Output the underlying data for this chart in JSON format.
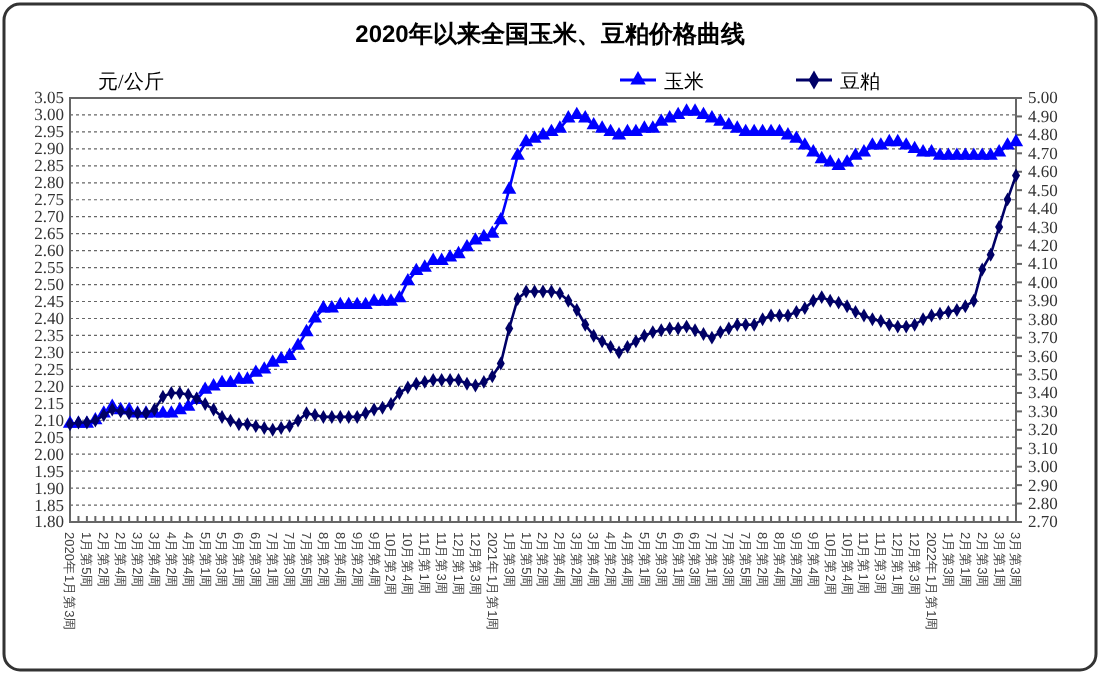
{
  "chart_data": {
    "type": "line",
    "title": "2020年以来全国玉米、豆粕价格曲线",
    "ylabel": "元/公斤",
    "categories": [
      "2020年1月第3周",
      null,
      "1月第5周",
      null,
      "2月第2周",
      null,
      "2月第4周",
      null,
      "3月第2周",
      null,
      "3月第4周",
      null,
      "4月第2周",
      null,
      "4月第4周",
      null,
      "5月第1周",
      null,
      "5月第3周",
      null,
      "6月第1周",
      null,
      "6月第3周",
      null,
      "7月第1周",
      null,
      "7月第3周",
      null,
      "7月第5周",
      null,
      "8月第2周",
      null,
      "8月第4周",
      null,
      "9月第2周",
      null,
      "9月第4周",
      null,
      "10月第2周",
      null,
      "10月第4周",
      null,
      "11月第1周",
      null,
      "11月第3周",
      null,
      "12月第1周",
      null,
      "12月第3周",
      null,
      "2021年1月第1周",
      null,
      "1月第3周",
      null,
      "1月第5周",
      null,
      "2月第2周",
      null,
      "2月第4周",
      null,
      "3月第2周",
      null,
      "3月第4周",
      null,
      "4月第2周",
      null,
      "4月第4周",
      null,
      "5月第1周",
      null,
      "5月第3周",
      null,
      "6月第1周",
      null,
      "6月第3周",
      null,
      "7月第1周",
      null,
      "7月第3周",
      null,
      "7月第5周",
      null,
      "8月第2周",
      null,
      "8月第4周",
      null,
      "9月第2周",
      null,
      "9月第4周",
      null,
      "10月第2周",
      null,
      "10月第4周",
      null,
      "11月第1周",
      null,
      "11月第3周",
      null,
      "12月第1周",
      null,
      "12月第3周",
      null,
      "2022年1月第1周",
      null,
      "1月第3周",
      null,
      "2月第1周",
      null,
      "2月第3周",
      null,
      "3月第1周",
      null,
      "3月第3周"
    ],
    "series": [
      {
        "name": "玉米",
        "color": "#0000ff",
        "marker": "triangle",
        "values": [
          2.09,
          2.09,
          2.09,
          2.1,
          2.12,
          2.14,
          2.13,
          2.13,
          2.12,
          2.12,
          2.12,
          2.12,
          2.12,
          2.13,
          2.14,
          2.16,
          2.19,
          2.2,
          2.21,
          2.21,
          2.22,
          2.22,
          2.24,
          2.25,
          2.27,
          2.28,
          2.29,
          2.32,
          2.36,
          2.4,
          2.43,
          2.43,
          2.44,
          2.44,
          2.44,
          2.44,
          2.45,
          2.45,
          2.45,
          2.46,
          2.51,
          2.54,
          2.55,
          2.57,
          2.57,
          2.58,
          2.59,
          2.61,
          2.63,
          2.64,
          2.65,
          2.69,
          2.78,
          2.88,
          2.92,
          2.93,
          2.94,
          2.95,
          2.96,
          2.99,
          3.0,
          2.99,
          2.97,
          2.96,
          2.95,
          2.94,
          2.95,
          2.95,
          2.96,
          2.96,
          2.98,
          2.99,
          3.0,
          3.01,
          3.01,
          3.0,
          2.99,
          2.98,
          2.97,
          2.96,
          2.95,
          2.95,
          2.95,
          2.95,
          2.95,
          2.94,
          2.93,
          2.91,
          2.89,
          2.87,
          2.86,
          2.85,
          2.86,
          2.88,
          2.89,
          2.91,
          2.91,
          2.92,
          2.92,
          2.91,
          2.9,
          2.89,
          2.89,
          2.88,
          2.88,
          2.88,
          2.88,
          2.88,
          2.88,
          2.88,
          2.89,
          2.91,
          2.92
        ]
      },
      {
        "name": "豆粕",
        "color": "#000066",
        "marker": "diamond",
        "axis": "y2",
        "values": [
          3.23,
          3.24,
          3.24,
          3.25,
          3.28,
          3.31,
          3.3,
          3.29,
          3.29,
          3.29,
          3.31,
          3.38,
          3.4,
          3.4,
          3.39,
          3.37,
          3.34,
          3.31,
          3.27,
          3.25,
          3.23,
          3.23,
          3.22,
          3.21,
          3.2,
          3.21,
          3.22,
          3.25,
          3.29,
          3.28,
          3.27,
          3.27,
          3.27,
          3.27,
          3.27,
          3.29,
          3.31,
          3.32,
          3.34,
          3.4,
          3.43,
          3.45,
          3.46,
          3.47,
          3.47,
          3.47,
          3.47,
          3.45,
          3.44,
          3.46,
          3.49,
          3.56,
          3.75,
          3.91,
          3.95,
          3.95,
          3.95,
          3.95,
          3.94,
          3.9,
          3.85,
          3.77,
          3.71,
          3.68,
          3.65,
          3.62,
          3.65,
          3.68,
          3.71,
          3.73,
          3.74,
          3.75,
          3.75,
          3.76,
          3.74,
          3.72,
          3.7,
          3.73,
          3.75,
          3.77,
          3.77,
          3.77,
          3.8,
          3.82,
          3.82,
          3.82,
          3.84,
          3.86,
          3.9,
          3.92,
          3.9,
          3.89,
          3.87,
          3.84,
          3.82,
          3.8,
          3.79,
          3.77,
          3.76,
          3.76,
          3.77,
          3.8,
          3.82,
          3.83,
          3.84,
          3.85,
          3.87,
          3.9,
          4.07,
          4.15,
          4.3,
          4.45,
          4.58
        ]
      }
    ],
    "ylim": [
      1.8,
      3.05
    ],
    "yticks": [
      {
        "value": 1.8,
        "label": "1.80"
      },
      {
        "value": 1.85,
        "label": "1.85"
      },
      {
        "value": 1.9,
        "label": "1.90"
      },
      {
        "value": 1.95,
        "label": "1.95"
      },
      {
        "value": 2,
        "label": "2.00"
      },
      {
        "value": 2.05,
        "label": "2.05"
      },
      {
        "value": 2.1,
        "label": "2.10"
      },
      {
        "value": 2.15,
        "label": "2.15"
      },
      {
        "value": 2.2,
        "label": "2.20"
      },
      {
        "value": 2.25,
        "label": "2.25"
      },
      {
        "value": 2.3,
        "label": "2.30"
      },
      {
        "value": 2.35,
        "label": "2.35"
      },
      {
        "value": 2.4,
        "label": "2.40"
      },
      {
        "value": 2.45,
        "label": "2.45"
      },
      {
        "value": 2.5,
        "label": "2.50"
      },
      {
        "value": 2.55,
        "label": "2.55"
      },
      {
        "value": 2.6,
        "label": "2.60"
      },
      {
        "value": 2.65,
        "label": "2.65"
      },
      {
        "value": 2.7,
        "label": "2.70"
      },
      {
        "value": 2.75,
        "label": "2.75"
      },
      {
        "value": 2.8,
        "label": "2.80"
      },
      {
        "value": 2.85,
        "label": "2.85"
      },
      {
        "value": 2.9,
        "label": "2.90"
      },
      {
        "value": 2.95,
        "label": "2.95"
      },
      {
        "value": 3,
        "label": "3.00"
      },
      {
        "value": 3.05,
        "label": "3.05"
      }
    ],
    "y2lim": [
      2.7,
      5
    ],
    "y2ticks": [
      {
        "value": 2.7,
        "label": "2.70"
      },
      {
        "value": 2.8,
        "label": "2.80"
      },
      {
        "value": 2.9,
        "label": "2.90"
      },
      {
        "value": 3,
        "label": "3.00"
      },
      {
        "value": 3.1,
        "label": "3.10"
      },
      {
        "value": 3.2,
        "label": "3.20"
      },
      {
        "value": 3.3,
        "label": "3.30"
      },
      {
        "value": 3.4,
        "label": "3.40"
      },
      {
        "value": 3.5,
        "label": "3.50"
      },
      {
        "value": 3.6,
        "label": "3.60"
      },
      {
        "value": 3.7,
        "label": "3.70"
      },
      {
        "value": 3.8,
        "label": "3.80"
      },
      {
        "value": 3.9,
        "label": "3.90"
      },
      {
        "value": 4,
        "label": "4.00"
      },
      {
        "value": 4.1,
        "label": "4.10"
      },
      {
        "value": 4.2,
        "label": "4.20"
      },
      {
        "value": 4.3,
        "label": "4.30"
      },
      {
        "value": 4.4,
        "label": "4.40"
      },
      {
        "value": 4.5,
        "label": "4.50"
      },
      {
        "value": 4.6,
        "label": "4.60"
      },
      {
        "value": 4.7,
        "label": "4.70"
      },
      {
        "value": 4.8,
        "label": "4.80"
      },
      {
        "value": 4.9,
        "label": "4.90"
      },
      {
        "value": 5,
        "label": "5.00"
      }
    ],
    "grid": "y",
    "legend": "top right",
    "line_style": "solid"
  }
}
